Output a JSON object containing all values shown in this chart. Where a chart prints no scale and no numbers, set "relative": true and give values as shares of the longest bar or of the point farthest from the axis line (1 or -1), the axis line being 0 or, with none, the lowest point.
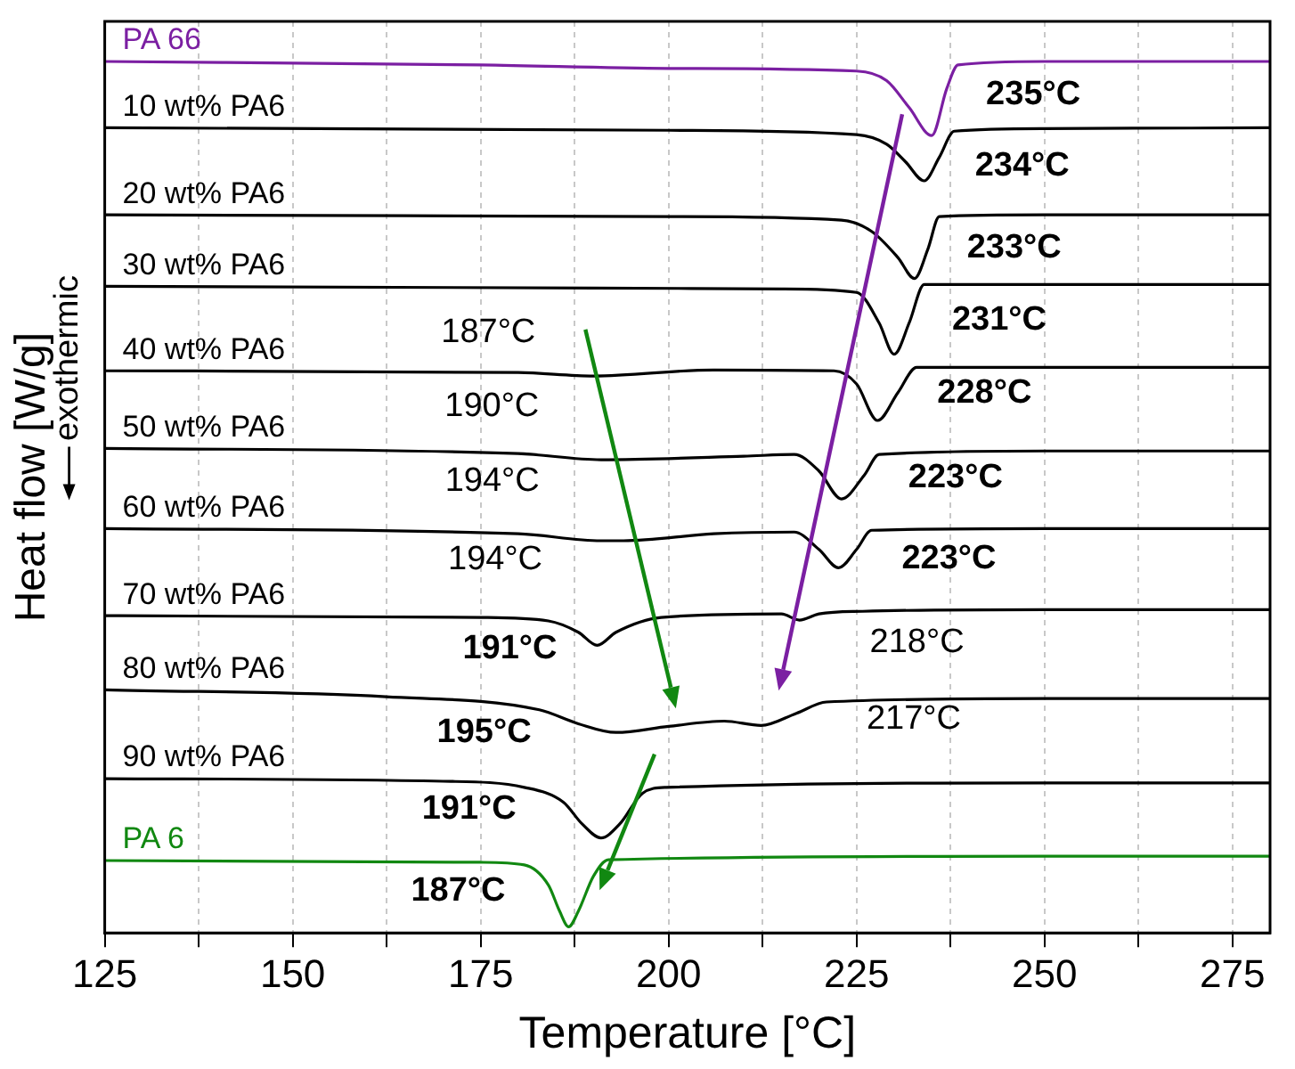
{
  "chart_data": {
    "type": "line",
    "relative": true,
    "xlabel": "Temperature [°C]",
    "ylabel": "Heat flow [W/g]",
    "xlim": [
      125,
      280
    ],
    "xticks": [
      125,
      {
        "value": 137.5,
        "label": null
      },
      150,
      {
        "value": 162.5,
        "label": null
      },
      175,
      {
        "value": 187.5,
        "label": null
      },
      200,
      {
        "value": 212.5,
        "label": null
      },
      225,
      {
        "value": 237.5,
        "label": null
      },
      250,
      {
        "value": 262.5,
        "label": null
      },
      275
    ],
    "grid": "x",
    "legend": false,
    "marker": "none",
    "line_style": "solid",
    "series": [
      {
        "name": "PA 66",
        "color": "#7b1fa2",
        "x": [
          125,
          175,
          200,
          225,
          229,
          232,
          235,
          237,
          238.5,
          250,
          280
        ],
        "values": [
          1.0,
          0.996,
          0.992,
          0.989,
          0.978,
          0.947,
          0.915,
          0.969,
          0.996,
          1.0,
          1.0
        ]
      },
      {
        "name": "10 wt% PA6",
        "color": "#000000",
        "x": [
          125,
          200,
          225,
          229,
          231.5,
          234,
          236,
          238,
          250,
          280
        ],
        "values": [
          0.924,
          0.921,
          0.916,
          0.905,
          0.885,
          0.863,
          0.89,
          0.92,
          0.923,
          0.924
        ]
      },
      {
        "name": "20 wt% PA6",
        "color": "#000000",
        "x": [
          125,
          200,
          223,
          227,
          230.5,
          232.7,
          234.5,
          236,
          250,
          280
        ],
        "values": [
          0.824,
          0.822,
          0.818,
          0.805,
          0.775,
          0.751,
          0.785,
          0.822,
          0.824,
          0.824
        ]
      },
      {
        "name": "30 wt% PA6",
        "color": "#000000",
        "x": [
          125,
          190,
          215,
          225,
          228,
          230,
          232,
          234,
          250,
          280
        ],
        "values": [
          0.742,
          0.74,
          0.739,
          0.735,
          0.7,
          0.664,
          0.7,
          0.744,
          0.744,
          0.744
        ]
      },
      {
        "name": "40 wt% PA6",
        "color": "#000000",
        "x": [
          125,
          180,
          190,
          206,
          222,
          225,
          227.8,
          230.5,
          233,
          250,
          280
        ],
        "values": [
          0.645,
          0.643,
          0.639,
          0.646,
          0.645,
          0.63,
          0.588,
          0.62,
          0.649,
          0.649,
          0.649
        ]
      },
      {
        "name": "50 wt% PA6",
        "color": "#000000",
        "x": [
          125,
          180,
          191,
          210,
          216.7,
          220,
          223,
          226,
          228,
          250,
          280
        ],
        "values": [
          0.556,
          0.55,
          0.543,
          0.547,
          0.549,
          0.53,
          0.498,
          0.525,
          0.549,
          0.553,
          0.553
        ]
      },
      {
        "name": "60 wt% PA6",
        "color": "#000000",
        "x": [
          125,
          180,
          191,
          194,
          206,
          216.7,
          220,
          222.6,
          225,
          227,
          250,
          280
        ],
        "values": [
          0.464,
          0.458,
          0.45,
          0.45,
          0.458,
          0.46,
          0.44,
          0.419,
          0.44,
          0.462,
          0.464,
          0.464
        ]
      },
      {
        "name": "70 wt% PA6",
        "color": "#000000",
        "x": [
          125,
          175,
          184,
          188,
          190.5,
          193,
          199,
          215,
          217.4,
          220,
          225.8,
          250,
          280
        ],
        "values": [
          0.364,
          0.362,
          0.358,
          0.345,
          0.33,
          0.345,
          0.362,
          0.366,
          0.359,
          0.366,
          0.369,
          0.371,
          0.371
        ]
      },
      {
        "name": "80 wt% PA6",
        "color": "#000000",
        "x": [
          125,
          162.4,
          182.8,
          188,
          193,
          200,
          207.4,
          212.3,
          217,
          221,
          250,
          280
        ],
        "values": [
          0.279,
          0.271,
          0.256,
          0.24,
          0.23,
          0.237,
          0.243,
          0.238,
          0.252,
          0.265,
          0.269,
          0.269
        ]
      },
      {
        "name": "90 wt% PA6",
        "color": "#000000",
        "x": [
          125,
          170,
          180.8,
          186,
          188.5,
          191,
          193.5,
          196.5,
          199.7,
          250,
          280
        ],
        "values": [
          0.177,
          0.174,
          0.167,
          0.15,
          0.125,
          0.109,
          0.125,
          0.16,
          0.167,
          0.172,
          0.172
        ]
      },
      {
        "name": "PA 6",
        "color": "#118811",
        "x": [
          125,
          175,
          180.8,
          184,
          185.5,
          186.7,
          188,
          190,
          192,
          250,
          280
        ],
        "values": [
          0.083,
          0.081,
          0.078,
          0.055,
          0.025,
          0.007,
          0.025,
          0.065,
          0.084,
          0.088,
          0.088
        ]
      }
    ],
    "annotations": [
      "exothermic",
      {
        "text": "235°C",
        "x": 235,
        "y": 0.915
      },
      {
        "text": "234°C",
        "x": 234,
        "y": 0.863
      },
      {
        "text": "233°C",
        "x": 232.7,
        "y": 0.751
      },
      {
        "text": "231°C",
        "x": 230,
        "y": 0.664
      },
      {
        "text": "228°C",
        "x": 227.8,
        "y": 0.588
      },
      {
        "text": "223°C",
        "x": 223,
        "y": 0.498
      },
      {
        "text": "223°C",
        "x": 222.6,
        "y": 0.419
      },
      {
        "text": "187°C",
        "x": 190,
        "y": 0.74
      },
      {
        "text": "190°C",
        "x": 190,
        "y": 0.639
      },
      {
        "text": "194°C",
        "x": 191,
        "y": 0.543
      },
      {
        "text": "194°C",
        "x": 194,
        "y": 0.45
      },
      {
        "text": "191°C",
        "x": 190.5,
        "y": 0.33
      },
      {
        "text": "218°C",
        "x": 217.4,
        "y": 0.359
      },
      {
        "text": "195°C",
        "x": 193,
        "y": 0.23
      },
      {
        "text": "217°C",
        "x": 221,
        "y": 0.265
      },
      {
        "text": "191°C",
        "x": 191,
        "y": 0.109
      },
      {
        "text": "187°C",
        "x": 186.7,
        "y": 0.007
      }
    ]
  }
}
